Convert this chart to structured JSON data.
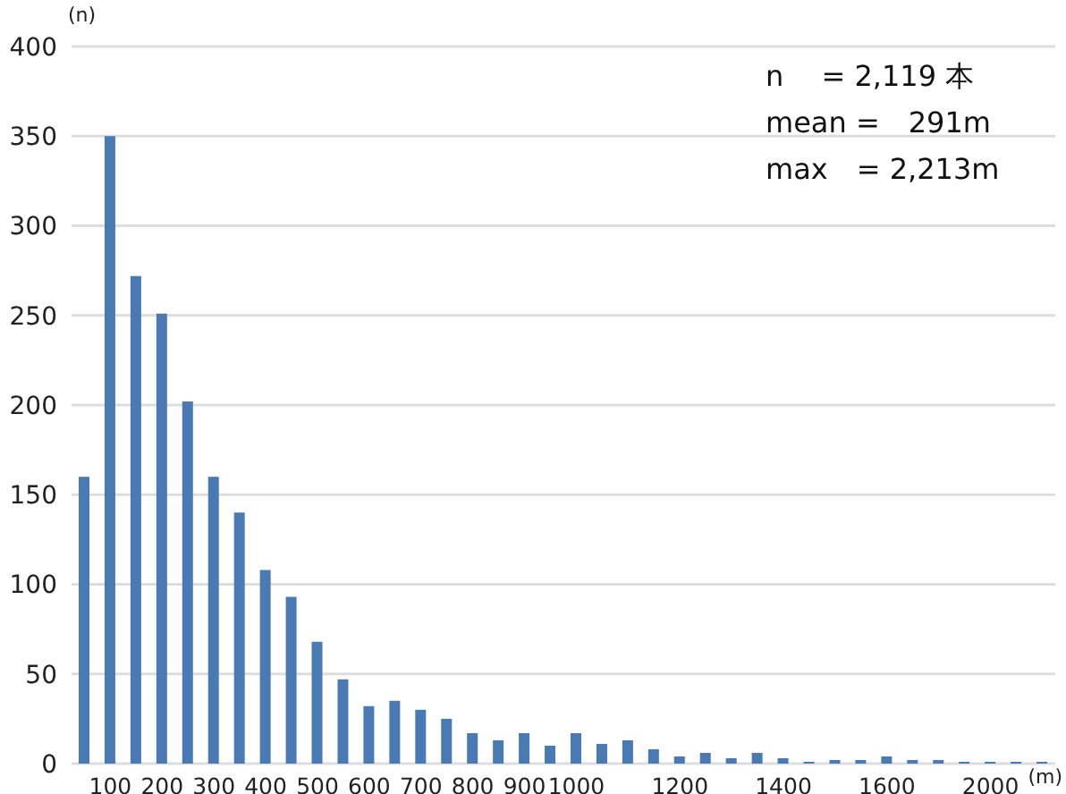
{
  "chart_data": {
    "type": "bar",
    "ylabel": "(n)",
    "xlabel": "(m)",
    "categories": [
      null,
      "100",
      null,
      "200",
      null,
      "300",
      null,
      "400",
      null,
      "500",
      null,
      "600",
      null,
      "700",
      null,
      "800",
      null,
      "900",
      null,
      "1000",
      null,
      null,
      null,
      "1200",
      null,
      null,
      null,
      "1400",
      null,
      null,
      null,
      "1600",
      null,
      null,
      null,
      "2000",
      null,
      null
    ],
    "values": [
      160,
      350,
      272,
      251,
      202,
      160,
      140,
      108,
      93,
      68,
      47,
      32,
      35,
      30,
      25,
      17,
      13,
      17,
      10,
      17,
      11,
      13,
      8,
      4,
      6,
      3,
      6,
      3,
      1,
      2,
      2,
      4,
      2,
      2,
      1,
      1,
      1,
      1
    ],
    "color": "#4a7ab4",
    "ylim": [
      0,
      400
    ],
    "yticks": [
      0,
      50,
      100,
      150,
      200,
      250,
      300,
      350,
      400
    ],
    "grid": "y",
    "annotations": [
      "n　 = 2,119 本",
      "mean =　291m",
      "max　= 2,213m"
    ]
  }
}
